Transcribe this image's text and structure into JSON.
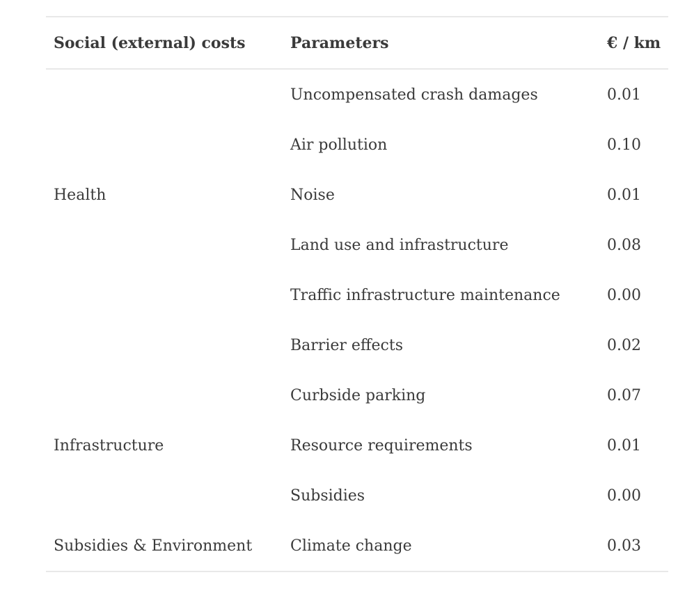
{
  "table": {
    "columns": {
      "group": "Social (external) costs",
      "parameter": "Parameters",
      "value": "€ / km"
    },
    "rows": [
      {
        "group": "",
        "parameter": "Uncompensated crash damages",
        "value": "0.01"
      },
      {
        "group": "",
        "parameter": "Air pollution",
        "value": "0.10"
      },
      {
        "group": "Health",
        "parameter": "Noise",
        "value": "0.01"
      },
      {
        "group": "",
        "parameter": "Land use and infrastructure",
        "value": "0.08"
      },
      {
        "group": "",
        "parameter": "Traffic infrastructure maintenance",
        "value": "0.00"
      },
      {
        "group": "",
        "parameter": "Barrier effects",
        "value": "0.02"
      },
      {
        "group": "",
        "parameter": "Curbside parking",
        "value": "0.07"
      },
      {
        "group": "Infrastructure",
        "parameter": "Resource requirements",
        "value": "0.01"
      },
      {
        "group": "",
        "parameter": "Subsidies",
        "value": "0.00"
      },
      {
        "group": "Subsidies & Environment",
        "parameter": "Climate change",
        "value": "0.03"
      }
    ]
  },
  "colors": {
    "background": "#ffffff",
    "text": "#3a3a3a",
    "rule": "#e8e8e8"
  }
}
